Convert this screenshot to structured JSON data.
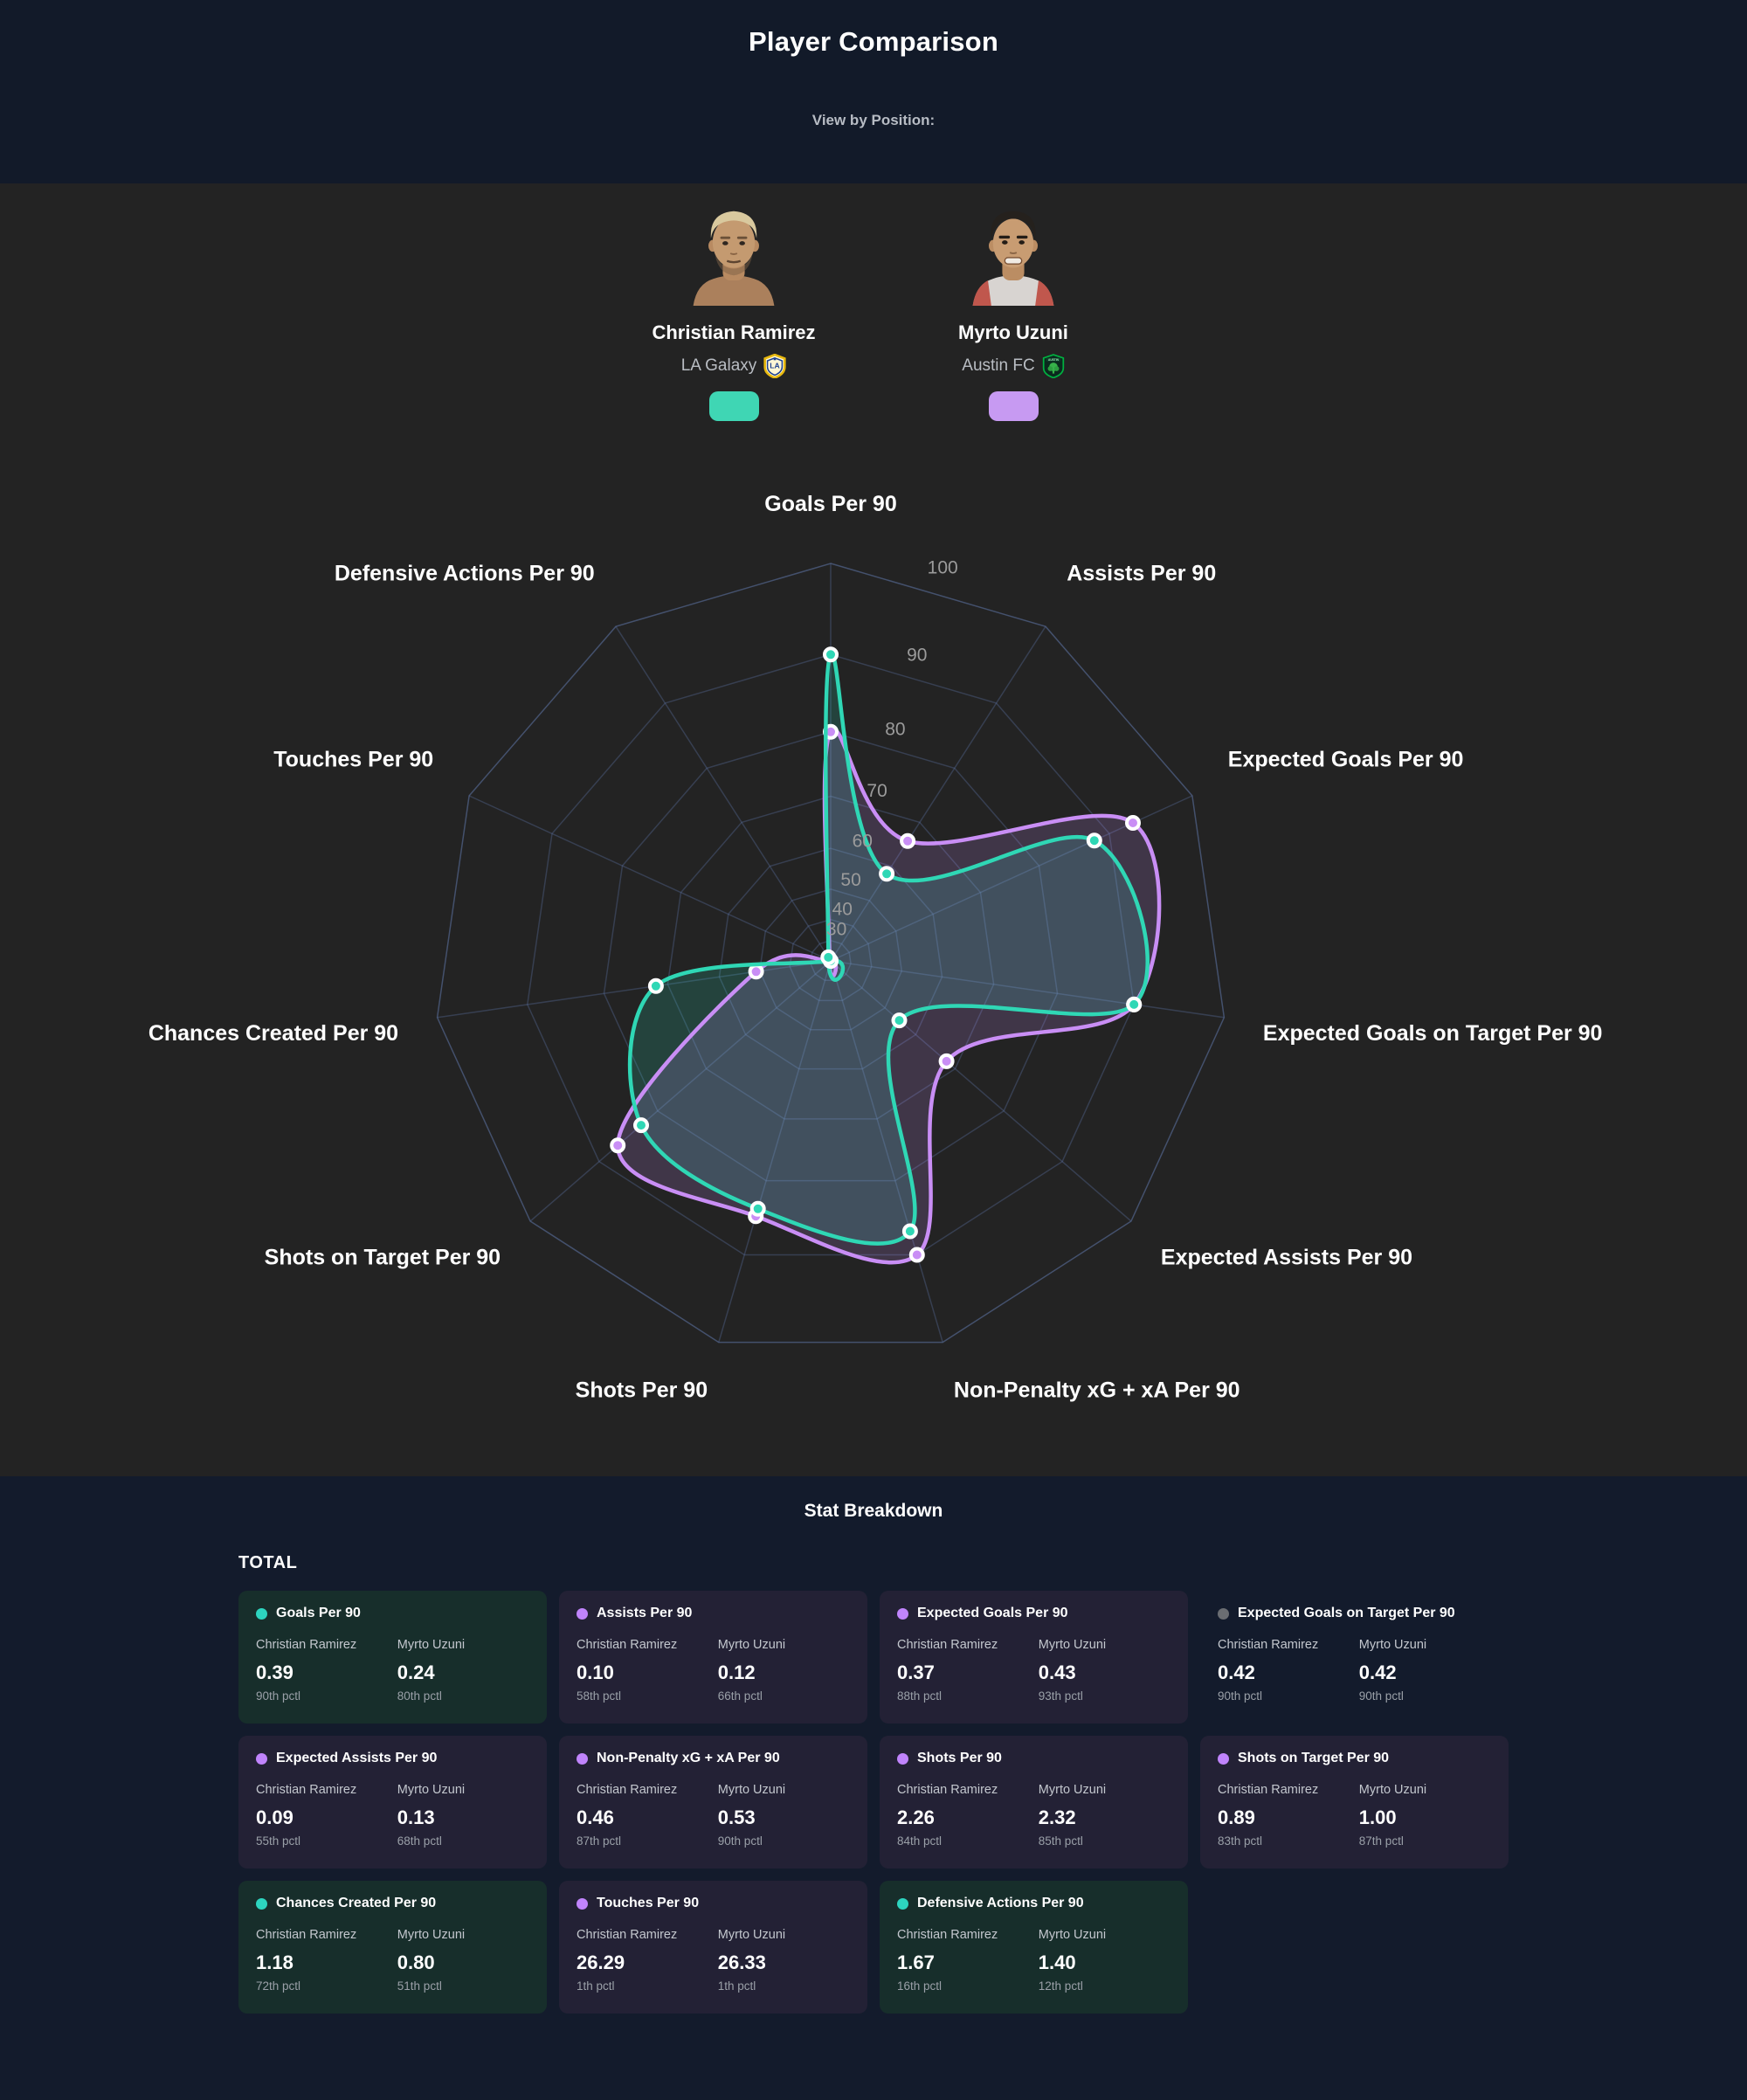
{
  "header": {
    "title": "Player Comparison",
    "subtitle": "View by Position:"
  },
  "players": [
    {
      "name": "Christian Ramirez",
      "team": "LA Galaxy",
      "swatch_color": "#3fd6b4"
    },
    {
      "name": "Myrto Uzuni",
      "team": "Austin FC",
      "swatch_color": "#c79af2"
    }
  ],
  "chart_data": {
    "type": "radar",
    "title": "",
    "categories": [
      "Goals Per 90",
      "Assists Per 90",
      "Expected Goals Per 90",
      "Expected Goals on Target Per 90",
      "Expected Assists Per 90",
      "Non-Penalty xG + xA Per 90",
      "Shots Per 90",
      "Shots on Target Per 90",
      "Chances Created Per 90",
      "Touches Per 90",
      "Defensive Actions Per 90"
    ],
    "series": [
      {
        "name": "Christian Ramirez",
        "color": "#2fd7b5",
        "values": [
          90,
          58,
          88,
          90,
          55,
          87,
          84,
          83,
          72,
          1,
          16
        ]
      },
      {
        "name": "Myrto Uzuni",
        "color": "#c98ef5",
        "values": [
          80,
          66,
          93,
          90,
          68,
          90,
          85,
          87,
          51,
          1,
          12
        ]
      }
    ],
    "unit": "percentile",
    "radial_range": [
      0,
      100
    ],
    "radial_ticks": [
      30,
      40,
      50,
      60,
      70,
      80,
      90,
      100
    ],
    "grid_levels": [
      10,
      20,
      30,
      40,
      50,
      60,
      70,
      80,
      90,
      100
    ],
    "scale_exponent": 2.47,
    "grid_on": true,
    "grid_color": "#5a6f9e",
    "tick_color": "#9b9b9b",
    "label_color": "#ffffff",
    "legend_position": "none",
    "fill_opacity": 0.18
  },
  "breakdown": {
    "section_title": "Stat Breakdown",
    "group_label": "TOTAL",
    "winner_colors": {
      "teal": "#2dd4bf",
      "purple": "#c084fc",
      "tie": "#6a6d72"
    },
    "card_backgrounds": {
      "teal": "#172e2b",
      "purple": "#232135",
      "tie": "transparent"
    },
    "cards": [
      {
        "label": "Goals Per 90",
        "winner": "teal",
        "player1": {
          "name": "Christian Ramirez",
          "value": "0.39",
          "pctl": "90th pctl"
        },
        "player2": {
          "name": "Myrto Uzuni",
          "value": "0.24",
          "pctl": "80th pctl"
        }
      },
      {
        "label": "Assists Per 90",
        "winner": "purple",
        "player1": {
          "name": "Christian Ramirez",
          "value": "0.10",
          "pctl": "58th pctl"
        },
        "player2": {
          "name": "Myrto Uzuni",
          "value": "0.12",
          "pctl": "66th pctl"
        }
      },
      {
        "label": "Expected Goals Per 90",
        "winner": "purple",
        "player1": {
          "name": "Christian Ramirez",
          "value": "0.37",
          "pctl": "88th pctl"
        },
        "player2": {
          "name": "Myrto Uzuni",
          "value": "0.43",
          "pctl": "93th pctl"
        }
      },
      {
        "label": "Expected Goals on Target Per 90",
        "winner": "tie",
        "player1": {
          "name": "Christian Ramirez",
          "value": "0.42",
          "pctl": "90th pctl"
        },
        "player2": {
          "name": "Myrto Uzuni",
          "value": "0.42",
          "pctl": "90th pctl"
        }
      },
      {
        "label": "Expected Assists Per 90",
        "winner": "purple",
        "player1": {
          "name": "Christian Ramirez",
          "value": "0.09",
          "pctl": "55th pctl"
        },
        "player2": {
          "name": "Myrto Uzuni",
          "value": "0.13",
          "pctl": "68th pctl"
        }
      },
      {
        "label": "Non-Penalty xG + xA Per 90",
        "winner": "purple",
        "player1": {
          "name": "Christian Ramirez",
          "value": "0.46",
          "pctl": "87th pctl"
        },
        "player2": {
          "name": "Myrto Uzuni",
          "value": "0.53",
          "pctl": "90th pctl"
        }
      },
      {
        "label": "Shots Per 90",
        "winner": "purple",
        "player1": {
          "name": "Christian Ramirez",
          "value": "2.26",
          "pctl": "84th pctl"
        },
        "player2": {
          "name": "Myrto Uzuni",
          "value": "2.32",
          "pctl": "85th pctl"
        }
      },
      {
        "label": "Shots on Target Per 90",
        "winner": "purple",
        "player1": {
          "name": "Christian Ramirez",
          "value": "0.89",
          "pctl": "83th pctl"
        },
        "player2": {
          "name": "Myrto Uzuni",
          "value": "1.00",
          "pctl": "87th pctl"
        }
      },
      {
        "label": "Chances Created Per 90",
        "winner": "teal",
        "player1": {
          "name": "Christian Ramirez",
          "value": "1.18",
          "pctl": "72th pctl"
        },
        "player2": {
          "name": "Myrto Uzuni",
          "value": "0.80",
          "pctl": "51th pctl"
        }
      },
      {
        "label": "Touches Per 90",
        "winner": "purple",
        "player1": {
          "name": "Christian Ramirez",
          "value": "26.29",
          "pctl": "1th pctl"
        },
        "player2": {
          "name": "Myrto Uzuni",
          "value": "26.33",
          "pctl": "1th pctl"
        }
      },
      {
        "label": "Defensive Actions Per 90",
        "winner": "teal",
        "player1": {
          "name": "Christian Ramirez",
          "value": "1.67",
          "pctl": "16th pctl"
        },
        "player2": {
          "name": "Myrto Uzuni",
          "value": "1.40",
          "pctl": "12th pctl"
        }
      }
    ]
  }
}
